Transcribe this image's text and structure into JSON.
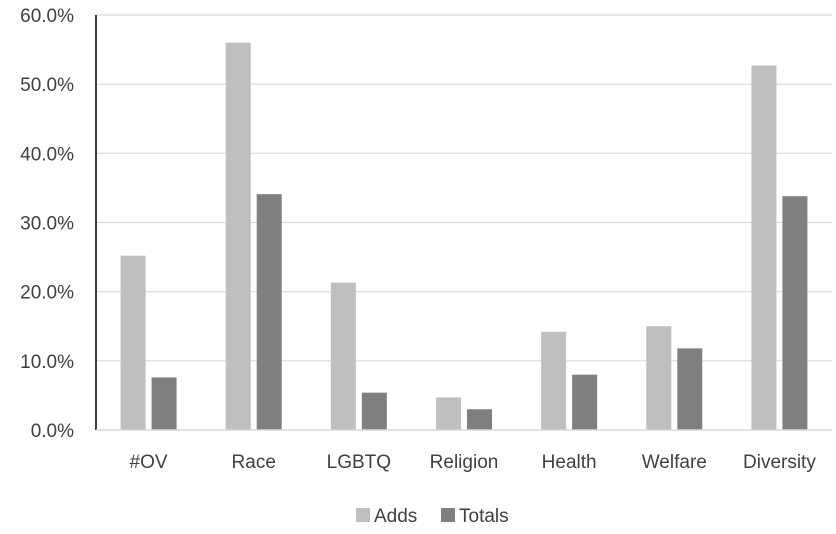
{
  "chart_data": {
    "type": "bar",
    "title": "",
    "xlabel": "",
    "ylabel": "",
    "categories": [
      "#OV",
      "Race",
      "LGBTQ",
      "Religion",
      "Health",
      "Welfare",
      "Diversity"
    ],
    "series": [
      {
        "name": "Adds",
        "color": "#bfbfbf",
        "values": [
          25.2,
          56.0,
          21.3,
          4.7,
          14.2,
          15.0,
          52.7
        ]
      },
      {
        "name": "Totals",
        "color": "#7f7f7f",
        "values": [
          7.6,
          34.1,
          5.4,
          3.0,
          8.0,
          11.8,
          33.8
        ]
      }
    ],
    "ylim": [
      0,
      60
    ],
    "yticks": [
      "0.0%",
      "10.0%",
      "20.0%",
      "30.0%",
      "40.0%",
      "50.0%",
      "60.0%"
    ],
    "grid": true,
    "legend_position": "bottom"
  }
}
